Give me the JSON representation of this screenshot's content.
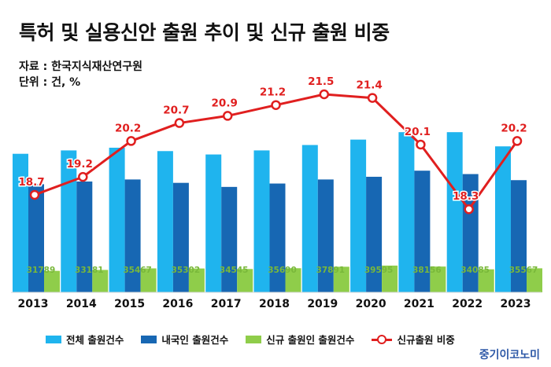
{
  "header": {
    "title": "특허 및 실용신안 출원 추이 및 신규 출원 비중",
    "source": "자료 : 한국지식재산연구원",
    "unit": "단위 : 건, %"
  },
  "brand": "중기이코노미",
  "colors": {
    "total": "#1fb4ee",
    "domestic": "#1767b3",
    "new_applicant": "#8fcd4a",
    "ratio_line": "#e01f1f",
    "label_green": "#79b83a"
  },
  "chart_data": {
    "type": "bar",
    "categories": [
      "2013",
      "2014",
      "2015",
      "2016",
      "2017",
      "2018",
      "2019",
      "2020",
      "2021",
      "2022",
      "2023"
    ],
    "series": [
      {
        "name": "전체 출원건수",
        "type": "bar",
        "values": [
          205000,
          210000,
          214000,
          209000,
          204000,
          210000,
          218000,
          226000,
          237000,
          237000,
          216000
        ]
      },
      {
        "name": "내국인 출원건수",
        "type": "bar",
        "values": [
          160000,
          164000,
          167000,
          162000,
          156000,
          161000,
          167000,
          171000,
          180000,
          175000,
          166000
        ]
      },
      {
        "name": "신규 출원인 출원건수",
        "type": "bar",
        "values": [
          31789,
          33181,
          35467,
          35302,
          34545,
          35690,
          37891,
          39595,
          38156,
          34085,
          35567
        ]
      },
      {
        "name": "신규출원 비중",
        "type": "line",
        "values": [
          18.7,
          19.2,
          20.2,
          20.7,
          20.9,
          21.2,
          21.5,
          21.4,
          20.1,
          18.3,
          20.2
        ]
      }
    ],
    "bar_labels_series": "신규 출원인 출원건수",
    "line_labels_series": "신규출원 비중",
    "legend_position": "bottom",
    "grid": false
  }
}
